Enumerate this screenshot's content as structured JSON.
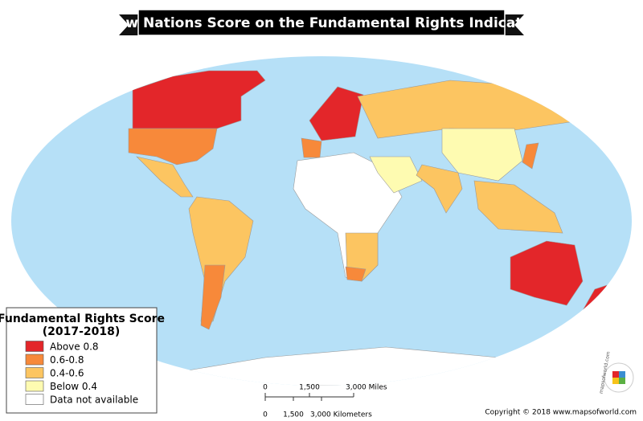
{
  "title": "How Nations Score on the Fundamental Rights Indicator",
  "legend": {
    "title_line1": "Fundamental Rights Score",
    "title_line2": "(2017-2018)",
    "items": [
      {
        "label": "Above 0.8",
        "color": "#e3262a"
      },
      {
        "label": "0.6-0.8",
        "color": "#f7893a"
      },
      {
        "label": "0.4-0.6",
        "color": "#fcc561"
      },
      {
        "label": "Below 0.4",
        "color": "#fefbb1"
      },
      {
        "label": "Data not available",
        "color": "#ffffff"
      }
    ]
  },
  "scale": {
    "miles": [
      "0",
      "1,500",
      "3,000 Miles"
    ],
    "kilometers": [
      "0",
      "1,500",
      "3,000 Kilometers"
    ]
  },
  "copyright": "Copyright © 2018 www.mapsofworld.com",
  "logo": "mapsofworld.com"
}
